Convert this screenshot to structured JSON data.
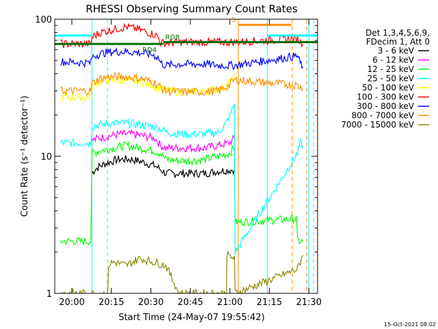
{
  "chart_data": {
    "type": "line",
    "title": "RHESSI Observing Summary Count Rates",
    "xlabel": "Start Time (24-May-07 19:55:42)",
    "ylabel": "Count Rate (s⁻¹ detector⁻¹)",
    "yscale": "log",
    "ylim": [
      1,
      100
    ],
    "xlim": [
      -2.2,
      97.6
    ],
    "x_unit": "minutes after 19:55:42",
    "x_ticks": [
      {
        "label": "20:00",
        "x": 4.3
      },
      {
        "label": "20:15",
        "x": 19.3
      },
      {
        "label": "20:30",
        "x": 34.3
      },
      {
        "label": "20:45",
        "x": 49.3
      },
      {
        "label": "21:00",
        "x": 64.3
      },
      {
        "label": "21:15",
        "x": 79.3
      },
      {
        "label": "21:30",
        "x": 94.3
      }
    ],
    "y_ticks": [
      {
        "label": "1",
        "y": 1
      },
      {
        "label": "10",
        "y": 10
      },
      {
        "label": "100",
        "y": 100
      }
    ],
    "legend": {
      "placement": "right",
      "header": [
        "Det 1,3,4,5,6,9,",
        "FDecim 1, Att 0"
      ]
    },
    "series": [
      {
        "name": "3 - 6 keV",
        "color": "#000000",
        "points": [
          [
            12.0,
            7.5
          ],
          [
            13,
            8.0
          ],
          [
            15,
            8.5
          ],
          [
            18,
            9.0
          ],
          [
            22,
            9.5
          ],
          [
            27,
            9.5
          ],
          [
            32,
            9.0
          ],
          [
            36,
            8.5
          ],
          [
            38,
            8.0
          ],
          [
            40,
            7.5
          ],
          [
            45,
            7.5
          ],
          [
            50,
            7.5
          ],
          [
            55,
            7.5
          ],
          [
            60,
            7.8
          ],
          [
            66,
            8.0
          ]
        ]
      },
      {
        "name": "6 - 12 keV",
        "color": "#ff00ff",
        "points": [
          [
            12.0,
            13
          ],
          [
            14,
            13.5
          ],
          [
            18,
            14
          ],
          [
            22,
            14.5
          ],
          [
            27,
            14.5
          ],
          [
            32,
            14
          ],
          [
            36,
            13.5
          ],
          [
            38,
            12
          ],
          [
            40,
            11.5
          ],
          [
            45,
            11.5
          ],
          [
            50,
            11.5
          ],
          [
            55,
            11.5
          ],
          [
            60,
            12
          ],
          [
            64,
            12.5
          ],
          [
            66,
            13.5
          ]
        ]
      },
      {
        "name": "12 - 25 keV",
        "color": "#00ff00",
        "points": [
          [
            0,
            2.4
          ],
          [
            11.5,
            2.4
          ],
          [
            12.0,
            10.5
          ],
          [
            15,
            11
          ],
          [
            20,
            11.5
          ],
          [
            25,
            12
          ],
          [
            30,
            11.5
          ],
          [
            35,
            11
          ],
          [
            38,
            10.5
          ],
          [
            40,
            9.5
          ],
          [
            45,
            9.3
          ],
          [
            50,
            9.3
          ],
          [
            55,
            9.5
          ],
          [
            60,
            10
          ],
          [
            64,
            10.5
          ],
          [
            66,
            11.5
          ],
          [
            66.3,
            3.3
          ],
          [
            89.5,
            3.5
          ],
          [
            90,
            2.4
          ],
          [
            92,
            2.4
          ]
        ]
      },
      {
        "name": "25 - 50 keV",
        "color": "#00ffff",
        "points": [
          [
            0,
            12.5
          ],
          [
            11.5,
            12.5
          ],
          [
            12.0,
            16.5
          ],
          [
            15,
            17
          ],
          [
            20,
            17.5
          ],
          [
            25,
            17.5
          ],
          [
            30,
            17
          ],
          [
            35,
            16.5
          ],
          [
            38,
            16
          ],
          [
            40,
            15
          ],
          [
            45,
            14.5
          ],
          [
            50,
            14.5
          ],
          [
            55,
            14.5
          ],
          [
            60,
            15
          ],
          [
            62,
            16.5
          ],
          [
            64,
            19
          ],
          [
            66,
            24
          ],
          [
            66.3,
            2
          ],
          [
            90,
            10.5
          ],
          [
            91,
            12.5
          ],
          [
            92,
            12
          ]
        ]
      },
      {
        "name": "50 - 100 keV",
        "color": "#ffff00",
        "points": [
          [
            0,
            27
          ],
          [
            11.5,
            27
          ],
          [
            12.0,
            33
          ],
          [
            15,
            35
          ],
          [
            20,
            36
          ],
          [
            25,
            36
          ],
          [
            30,
            35
          ],
          [
            35,
            33
          ],
          [
            37,
            31
          ],
          [
            38,
            32
          ],
          [
            40,
            30
          ],
          [
            45,
            29.5
          ],
          [
            50,
            29.5
          ],
          [
            55,
            30
          ],
          [
            60,
            31
          ],
          [
            63,
            33
          ],
          [
            65,
            36
          ],
          [
            66,
            40
          ]
        ]
      },
      {
        "name": "100 - 300 keV",
        "color": "#ff0000",
        "points": [
          [
            0,
            66
          ],
          [
            11.5,
            66
          ],
          [
            12.0,
            74
          ],
          [
            15,
            80
          ],
          [
            20,
            84
          ],
          [
            25,
            88
          ],
          [
            30,
            84
          ],
          [
            35,
            78
          ],
          [
            37,
            75
          ],
          [
            38,
            67
          ],
          [
            40,
            67
          ],
          [
            45,
            68
          ],
          [
            50,
            68
          ],
          [
            55,
            68
          ],
          [
            60,
            68
          ],
          [
            66,
            68
          ],
          [
            90,
            72
          ],
          [
            92,
            66
          ]
        ]
      },
      {
        "name": "300 - 800 keV",
        "color": "#0000ff",
        "points": [
          [
            0,
            49
          ],
          [
            11.5,
            48
          ],
          [
            12.0,
            53
          ],
          [
            15,
            56
          ],
          [
            20,
            58
          ],
          [
            25,
            58
          ],
          [
            30,
            57
          ],
          [
            35,
            55
          ],
          [
            37,
            53
          ],
          [
            38,
            48
          ],
          [
            40,
            46
          ],
          [
            45,
            47
          ],
          [
            50,
            47
          ],
          [
            55,
            47
          ],
          [
            60,
            46
          ],
          [
            66,
            46
          ],
          [
            90,
            54
          ],
          [
            91,
            48
          ],
          [
            92,
            45
          ]
        ]
      },
      {
        "name": "800 - 7000 keV",
        "color": "#ff8c00",
        "points": [
          [
            0,
            30
          ],
          [
            11.5,
            30
          ],
          [
            12.0,
            34
          ],
          [
            15,
            37
          ],
          [
            20,
            38
          ],
          [
            25,
            38
          ],
          [
            30,
            37
          ],
          [
            35,
            35
          ],
          [
            37,
            33
          ],
          [
            38,
            32
          ],
          [
            40,
            30
          ],
          [
            45,
            29.5
          ],
          [
            50,
            29.5
          ],
          [
            55,
            29.5
          ],
          [
            60,
            30
          ],
          [
            64,
            33
          ],
          [
            66,
            36
          ],
          [
            90,
            33
          ],
          [
            92,
            31
          ]
        ]
      },
      {
        "name": "7000 - 15000 keV",
        "color": "#8b8b00",
        "points": [
          [
            0,
            1
          ],
          [
            18,
            1
          ],
          [
            18.2,
            1.6
          ],
          [
            20,
            1.7
          ],
          [
            25,
            1.6
          ],
          [
            30,
            1.8
          ],
          [
            35,
            1.7
          ],
          [
            40,
            1.6
          ],
          [
            45,
            1
          ],
          [
            63,
            1
          ],
          [
            63.2,
            1.9
          ],
          [
            66,
            1.8
          ],
          [
            66.3,
            1
          ],
          [
            90,
            1.5
          ],
          [
            91,
            1.7
          ],
          [
            92,
            1.9
          ]
        ]
      }
    ],
    "thick_lines": [
      {
        "label": "RD4",
        "color": "#007000",
        "x": [
          -2.2,
          39.0
        ],
        "y": 66
      },
      {
        "label": "RD8",
        "color": "#007000",
        "x": [
          39.0,
          97.6
        ],
        "y": 68
      },
      {
        "label": "",
        "color": "#00ffff",
        "x": [
          -2.2,
          12.0
        ],
        "y": 76
      },
      {
        "label": "",
        "color": "#00ffff",
        "x": [
          78.5,
          97.6
        ],
        "y": 76
      },
      {
        "label": "S",
        "color": "#ff8c00",
        "x": [
          67.5,
          87.6
        ],
        "y": 91
      }
    ],
    "vlines": [
      {
        "x": 11.9,
        "color": "#00ffff",
        "dash": false
      },
      {
        "x": 94.3,
        "color": "#00ffff",
        "dash": false
      },
      {
        "x": 78.5,
        "color": "#00ffff",
        "dash": false
      },
      {
        "x": 17.8,
        "color": "#00ffff",
        "dash": true
      },
      {
        "x": 96.1,
        "color": "#00ffff",
        "dash": true
      },
      {
        "x": 67.5,
        "color": "#ff8c00",
        "dash": false
      },
      {
        "x": 88.0,
        "color": "#ff8c00",
        "dash": true
      },
      {
        "x": 93.5,
        "color": "#ff8c00",
        "dash": true
      }
    ],
    "grid": false
  },
  "footer": {
    "timestamp": "15-Oct-2021 08:02"
  }
}
